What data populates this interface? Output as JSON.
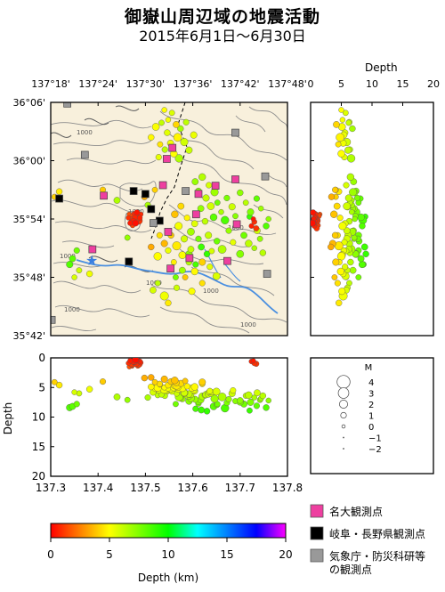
{
  "title": "御嶽山周辺域の地震活動",
  "subtitle": "2015年6月1日～6月30日",
  "map": {
    "lon_ticks": [
      "137°18'",
      "137°24'",
      "137°30'",
      "137°36'",
      "137°42'",
      "137°48'"
    ],
    "lat_ticks": [
      "36°06'",
      "36°00'",
      "35°54'",
      "35°48'",
      "35°42'"
    ],
    "contour_label": "1000"
  },
  "depth_panel": {
    "label": "Depth",
    "ticks": [
      "0",
      "5",
      "10",
      "15",
      "20"
    ]
  },
  "section_panel": {
    "ylabel": "Depth",
    "yticks": [
      "0",
      "5",
      "10",
      "15",
      "20"
    ],
    "xticks": [
      "137.3",
      "137.4",
      "137.5",
      "137.6",
      "137.7",
      "137.8"
    ]
  },
  "magnitude_legend": {
    "title": "M",
    "levels": [
      "4",
      "3",
      "2",
      "1",
      "0",
      "−1",
      "−2"
    ]
  },
  "colorbar": {
    "ticks": [
      "0",
      "5",
      "10",
      "15",
      "20"
    ],
    "label": "Depth (km)",
    "colors": [
      "#ff0000",
      "#ff8000",
      "#ffff00",
      "#80ff00",
      "#00ff00",
      "#00ffff",
      "#0080ff",
      "#0000ff",
      "#ff00ff"
    ]
  },
  "station_legend": [
    {
      "label": "名大観測点",
      "color": "#ee3fa0"
    },
    {
      "label": "岐阜・長野県観測点",
      "color": "#000000"
    },
    {
      "label": "気象庁・防災科研等\nの観測点",
      "color": "#999999"
    }
  ],
  "chart_data": {
    "type": "scatter",
    "x_range_deg": [
      137.3,
      137.8
    ],
    "y_range_deg": [
      35.7,
      36.1
    ],
    "depth_range_km": [
      0,
      20
    ],
    "stations": [
      {
        "type": "nagoya",
        "lon": 137.557,
        "lat": 36.022
      },
      {
        "type": "nagoya",
        "lon": 137.545,
        "lat": 36.003
      },
      {
        "type": "nagoya",
        "lon": 137.537,
        "lat": 35.958
      },
      {
        "type": "nagoya",
        "lon": 137.412,
        "lat": 35.94
      },
      {
        "type": "nagoya",
        "lon": 137.648,
        "lat": 35.957
      },
      {
        "type": "nagoya",
        "lon": 137.612,
        "lat": 35.943
      },
      {
        "type": "nagoya",
        "lon": 137.607,
        "lat": 35.908
      },
      {
        "type": "nagoya",
        "lon": 137.548,
        "lat": 35.878
      },
      {
        "type": "nagoya",
        "lon": 137.388,
        "lat": 35.848
      },
      {
        "type": "nagoya",
        "lon": 137.693,
        "lat": 35.891
      },
      {
        "type": "nagoya",
        "lon": 137.69,
        "lat": 35.968
      },
      {
        "type": "nagoya",
        "lon": 137.673,
        "lat": 35.828
      },
      {
        "type": "nagoya",
        "lon": 137.593,
        "lat": 35.833
      },
      {
        "type": "nagoya",
        "lon": 137.553,
        "lat": 35.815
      },
      {
        "type": "gifu_nagano",
        "lon": 137.475,
        "lat": 35.948
      },
      {
        "type": "gifu_nagano",
        "lon": 137.5,
        "lat": 35.943
      },
      {
        "type": "gifu_nagano",
        "lon": 137.512,
        "lat": 35.917
      },
      {
        "type": "gifu_nagano",
        "lon": 137.318,
        "lat": 35.935
      },
      {
        "type": "gifu_nagano",
        "lon": 137.53,
        "lat": 35.897
      },
      {
        "type": "gifu_nagano",
        "lon": 137.465,
        "lat": 35.827
      },
      {
        "type": "jma_nied",
        "lon": 137.335,
        "lat": 36.098
      },
      {
        "type": "jma_nied",
        "lon": 137.69,
        "lat": 36.048
      },
      {
        "type": "jma_nied",
        "lon": 137.372,
        "lat": 36.01
      },
      {
        "type": "jma_nied",
        "lon": 137.753,
        "lat": 35.973
      },
      {
        "type": "jma_nied",
        "lon": 137.585,
        "lat": 35.948
      },
      {
        "type": "jma_nied",
        "lon": 137.517,
        "lat": 35.893
      },
      {
        "type": "jma_nied",
        "lon": 137.757,
        "lat": 35.806
      },
      {
        "type": "jma_nied",
        "lon": 137.302,
        "lat": 35.727
      }
    ],
    "events": [
      [
        137.474,
        35.896,
        0.6,
        0.8
      ],
      [
        137.48,
        35.899,
        0.9,
        1.0
      ],
      [
        137.478,
        35.903,
        0.7,
        0.5
      ],
      [
        137.47,
        35.9,
        1.1,
        0.4
      ],
      [
        137.484,
        35.905,
        1.3,
        0.6
      ],
      [
        137.476,
        35.909,
        0.8,
        0.3
      ],
      [
        137.468,
        35.893,
        0.5,
        0.5
      ],
      [
        137.486,
        35.897,
        1.0,
        1.2
      ],
      [
        137.472,
        35.906,
        1.4,
        0.2
      ],
      [
        137.482,
        35.911,
        0.4,
        0.7
      ],
      [
        137.464,
        35.902,
        0.9,
        0.3
      ],
      [
        137.488,
        35.902,
        0.6,
        0.5
      ],
      [
        137.473,
        35.889,
        1.2,
        0.4
      ],
      [
        137.479,
        35.893,
        0.3,
        0.9
      ],
      [
        137.466,
        35.908,
        1.5,
        0.3
      ],
      [
        137.49,
        35.908,
        0.8,
        0.4
      ],
      [
        137.724,
        35.888,
        0.6,
        0.4
      ],
      [
        137.73,
        35.895,
        0.9,
        0.5
      ],
      [
        137.728,
        35.9,
        0.5,
        0.3
      ],
      [
        137.734,
        35.884,
        1.0,
        0.6
      ],
      [
        137.522,
        36.058,
        5.1,
        1.2
      ],
      [
        137.546,
        36.048,
        5.6,
        0.8
      ],
      [
        137.534,
        36.065,
        6.2,
        0.6
      ],
      [
        137.568,
        36.04,
        4.8,
        1.5
      ],
      [
        137.553,
        36.03,
        5.3,
        0.9
      ],
      [
        137.541,
        36.019,
        6.4,
        0.7
      ],
      [
        137.56,
        36.012,
        5.0,
        1.1
      ],
      [
        137.531,
        36.028,
        4.5,
        0.6
      ],
      [
        137.574,
        36.055,
        6.8,
        0.8
      ],
      [
        137.582,
        36.032,
        5.9,
        1.3
      ],
      [
        137.548,
        36.07,
        5.2,
        0.5
      ],
      [
        137.565,
        36.062,
        4.2,
        0.9
      ],
      [
        137.592,
        36.018,
        6.1,
        1.0
      ],
      [
        137.528,
        36.006,
        5.5,
        0.7
      ],
      [
        137.571,
        36.004,
        6.6,
        1.4
      ],
      [
        137.512,
        36.04,
        4.9,
        0.8
      ],
      [
        137.556,
        36.082,
        5.7,
        0.6
      ],
      [
        137.54,
        36.087,
        5.0,
        0.5
      ],
      [
        137.586,
        36.066,
        6.3,
        0.7
      ],
      [
        137.602,
        36.044,
        5.4,
        1.0
      ],
      [
        137.62,
        35.972,
        6.5,
        1.1
      ],
      [
        137.605,
        35.964,
        7.0,
        0.9
      ],
      [
        137.634,
        35.958,
        5.8,
        0.7
      ],
      [
        137.646,
        35.946,
        6.9,
        1.3
      ],
      [
        137.612,
        35.948,
        7.4,
        0.8
      ],
      [
        137.628,
        35.936,
        6.2,
        1.0
      ],
      [
        137.652,
        35.928,
        7.8,
        0.6
      ],
      [
        137.638,
        35.922,
        5.9,
        1.2
      ],
      [
        137.617,
        35.918,
        7.1,
        0.9
      ],
      [
        137.66,
        35.912,
        6.7,
        0.5
      ],
      [
        137.644,
        35.903,
        8.2,
        1.1
      ],
      [
        137.626,
        35.896,
        6.3,
        0.8
      ],
      [
        137.672,
        35.936,
        7.6,
        0.7
      ],
      [
        137.683,
        35.921,
        6.0,
        1.0
      ],
      [
        137.69,
        35.905,
        7.3,
        0.6
      ],
      [
        137.668,
        35.898,
        8.5,
        1.4
      ],
      [
        137.604,
        35.892,
        5.6,
        0.9
      ],
      [
        137.596,
        35.878,
        6.8,
        1.2
      ],
      [
        137.612,
        35.866,
        7.7,
        0.7
      ],
      [
        137.633,
        35.872,
        6.1,
        1.0
      ],
      [
        137.651,
        35.862,
        7.9,
        0.8
      ],
      [
        137.662,
        35.848,
        6.6,
        1.5
      ],
      [
        137.64,
        35.845,
        5.8,
        0.6
      ],
      [
        137.618,
        35.852,
        8.8,
        0.9
      ],
      [
        137.7,
        35.945,
        7.2,
        0.8
      ],
      [
        137.712,
        35.928,
        6.4,
        0.6
      ],
      [
        137.722,
        35.912,
        7.5,
        1.0
      ],
      [
        137.735,
        35.935,
        8.1,
        0.7
      ],
      [
        137.744,
        35.918,
        6.9,
        0.5
      ],
      [
        137.708,
        35.872,
        7.8,
        0.9
      ],
      [
        137.718,
        35.858,
        6.3,
        1.1
      ],
      [
        137.742,
        35.866,
        7.1,
        0.6
      ],
      [
        137.755,
        35.888,
        8.4,
        0.8
      ],
      [
        137.73,
        35.85,
        6.7,
        0.5
      ],
      [
        137.7,
        35.84,
        7.4,
        1.2
      ],
      [
        137.685,
        35.86,
        5.5,
        0.7
      ],
      [
        137.575,
        35.922,
        4.3,
        0.9
      ],
      [
        137.562,
        35.908,
        3.8,
        1.1
      ],
      [
        137.588,
        35.902,
        4.8,
        0.7
      ],
      [
        137.57,
        35.888,
        5.2,
        1.3
      ],
      [
        137.554,
        35.872,
        4.0,
        0.8
      ],
      [
        137.582,
        35.866,
        5.9,
        1.0
      ],
      [
        137.566,
        35.854,
        4.6,
        1.6
      ],
      [
        137.548,
        35.846,
        5.4,
        0.7
      ],
      [
        137.596,
        35.848,
        6.2,
        0.9
      ],
      [
        137.578,
        35.838,
        5.1,
        1.2
      ],
      [
        137.56,
        35.826,
        4.7,
        0.6
      ],
      [
        137.592,
        35.826,
        6.5,
        0.8
      ],
      [
        137.54,
        35.858,
        3.6,
        1.0
      ],
      [
        137.53,
        35.872,
        4.4,
        0.7
      ],
      [
        137.526,
        35.836,
        5.0,
        1.4
      ],
      [
        137.512,
        35.852,
        3.3,
        0.8
      ],
      [
        137.62,
        35.826,
        4.1,
        1.0
      ],
      [
        137.636,
        35.818,
        5.6,
        0.7
      ],
      [
        137.604,
        35.81,
        4.9,
        1.1
      ],
      [
        137.584,
        35.8,
        3.9,
        0.6
      ],
      [
        137.516,
        35.778,
        5.8,
        0.9
      ],
      [
        137.54,
        35.768,
        5.3,
        1.6
      ],
      [
        137.566,
        35.782,
        6.0,
        0.7
      ],
      [
        137.548,
        35.756,
        4.6,
        0.8
      ],
      [
        137.598,
        35.776,
        5.1,
        1.0
      ],
      [
        137.526,
        35.79,
        6.3,
        0.6
      ],
      [
        137.62,
        35.79,
        4.4,
        0.7
      ],
      [
        137.65,
        35.802,
        5.7,
        1.2
      ],
      [
        137.346,
        35.832,
        8.2,
        0.9
      ],
      [
        137.355,
        35.846,
        7.8,
        0.7
      ],
      [
        137.34,
        35.822,
        8.4,
        1.0
      ],
      [
        137.36,
        35.812,
        6.0,
        0.6
      ],
      [
        137.382,
        35.806,
        5.3,
        0.8
      ],
      [
        137.35,
        35.8,
        5.8,
        0.5
      ],
      [
        137.308,
        35.938,
        4.1,
        0.6
      ],
      [
        137.318,
        35.947,
        4.6,
        0.8
      ],
      [
        137.41,
        35.95,
        4.0,
        0.7
      ],
      [
        137.44,
        35.932,
        6.6,
        0.9
      ],
      [
        137.498,
        35.938,
        3.4,
        0.8
      ],
      [
        137.52,
        35.95,
        4.1,
        0.6
      ],
      [
        137.505,
        35.924,
        6.7,
        0.7
      ],
      [
        137.462,
        35.868,
        7.1,
        0.6
      ],
      [
        137.592,
        35.84,
        7.3,
        1.0
      ],
      [
        137.606,
        35.822,
        8.6,
        0.7
      ],
      [
        137.578,
        35.812,
        6.9,
        0.9
      ],
      [
        137.564,
        35.8,
        7.8,
        0.6
      ],
      [
        137.63,
        35.84,
        9.0,
        0.8
      ],
      [
        137.676,
        35.88,
        7.0,
        0.7
      ],
      [
        137.72,
        35.904,
        8.9,
        0.6
      ],
      [
        137.736,
        35.88,
        5.9,
        0.9
      ],
      [
        137.76,
        35.9,
        7.2,
        0.5
      ],
      [
        137.748,
        35.842,
        6.4,
        0.8
      ]
    ]
  }
}
